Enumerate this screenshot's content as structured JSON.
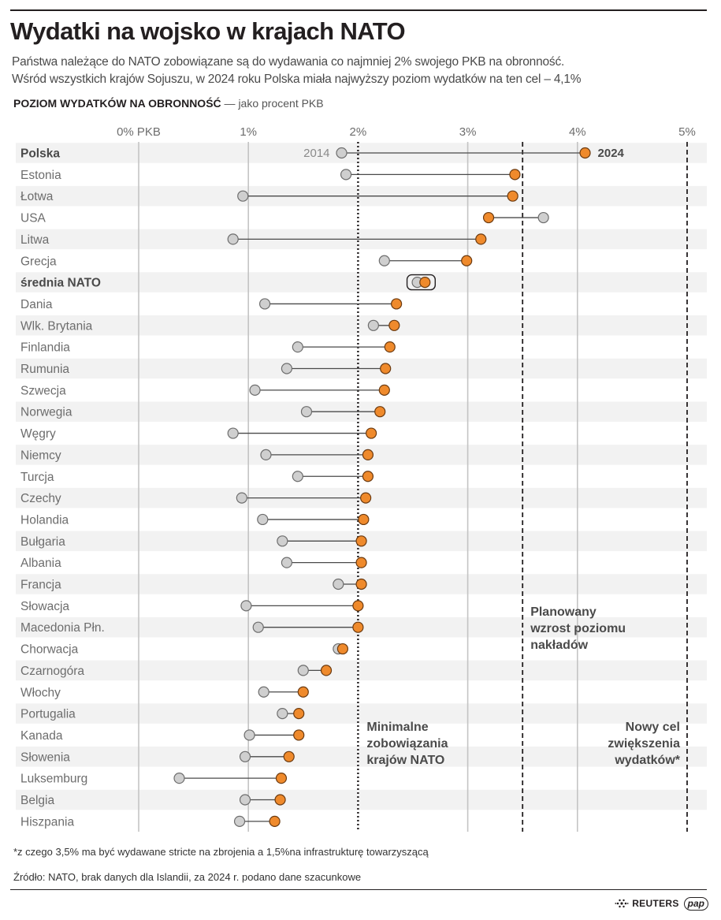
{
  "header": {
    "title": "Wydatki na wojsko w krajach NATO",
    "subtitle_line1": "Państwa należące do NATO zobowiązane są do wydawania co najmniej 2% swojego PKB na obronność.",
    "subtitle_line2": "Wśród wszystkich krajów Sojuszu, w 2024 roku Polska miała najwyższy poziom wydatków na ten cel – 4,1%",
    "axis_heading_bold": "POZIOM WYDATKÓW NA OBRONNOŚĆ",
    "axis_heading_dash": "—",
    "axis_heading_rest": "jako procent PKB"
  },
  "colors": {
    "orange": "#ef8a2c",
    "gray_dot": "#cfcfcf",
    "stripe": "#f2f2f2",
    "text_gray": "#6d6d6d",
    "dark": "#231f20"
  },
  "chart_data": {
    "type": "dumbbell",
    "series": [
      {
        "name": "2014"
      },
      {
        "name": "2024"
      }
    ],
    "xlim": [
      0,
      5
    ],
    "ticks": [
      {
        "value": 0,
        "label": "0% PKB"
      },
      {
        "value": 1,
        "label": "1%"
      },
      {
        "value": 2,
        "label": "2%"
      },
      {
        "value": 3,
        "label": "3%"
      },
      {
        "value": 4,
        "label": "4%"
      },
      {
        "value": 5,
        "label": "5%"
      }
    ],
    "reference_lines": [
      {
        "value": 2,
        "style": "dotted",
        "label_lines": [
          "Minimalne",
          "zobowiązania",
          "krajów NATO"
        ]
      },
      {
        "value": 3.5,
        "style": "dashed",
        "label_lines": [
          "Planowany",
          "wzrost poziomu",
          "nakładów"
        ]
      },
      {
        "value": 5,
        "style": "dashed",
        "label_lines": [
          "Nowy cel",
          "zwiększenia",
          "wydatków*"
        ]
      }
    ],
    "rows": [
      {
        "country": "Polska",
        "v2014": 1.85,
        "v2024": 4.07,
        "bold": true,
        "label_2014": "2014",
        "label_2024": "2024"
      },
      {
        "country": "Estonia",
        "v2014": 1.89,
        "v2024": 3.43
      },
      {
        "country": "Łotwa",
        "v2014": 0.95,
        "v2024": 3.41
      },
      {
        "country": "USA",
        "v2014": 3.69,
        "v2024": 3.19
      },
      {
        "country": "Litwa",
        "v2014": 0.86,
        "v2024": 3.12
      },
      {
        "country": "Grecja",
        "v2014": 2.24,
        "v2024": 2.99
      },
      {
        "country": "średnia NATO",
        "v2014": 2.54,
        "v2024": 2.61,
        "bold": true,
        "boxed": true
      },
      {
        "country": "Dania",
        "v2014": 1.15,
        "v2024": 2.35
      },
      {
        "country": "Wlk. Brytania",
        "v2014": 2.14,
        "v2024": 2.33
      },
      {
        "country": "Finlandia",
        "v2014": 1.45,
        "v2024": 2.29
      },
      {
        "country": "Rumunia",
        "v2014": 1.35,
        "v2024": 2.25
      },
      {
        "country": "Szwecja",
        "v2014": 1.06,
        "v2024": 2.24
      },
      {
        "country": "Norwegia",
        "v2014": 1.53,
        "v2024": 2.2
      },
      {
        "country": "Węgry",
        "v2014": 0.86,
        "v2024": 2.12
      },
      {
        "country": "Niemcy",
        "v2014": 1.16,
        "v2024": 2.09
      },
      {
        "country": "Turcja",
        "v2014": 1.45,
        "v2024": 2.09
      },
      {
        "country": "Czechy",
        "v2014": 0.94,
        "v2024": 2.07
      },
      {
        "country": "Holandia",
        "v2014": 1.13,
        "v2024": 2.05
      },
      {
        "country": "Bułgaria",
        "v2014": 1.31,
        "v2024": 2.03
      },
      {
        "country": "Albania",
        "v2014": 1.35,
        "v2024": 2.03
      },
      {
        "country": "Francja",
        "v2014": 1.82,
        "v2024": 2.03
      },
      {
        "country": "Słowacja",
        "v2014": 0.98,
        "v2024": 2.0
      },
      {
        "country": "Macedonia Płn.",
        "v2014": 1.09,
        "v2024": 2.0
      },
      {
        "country": "Chorwacja",
        "v2014": 1.82,
        "v2024": 1.86
      },
      {
        "country": "Czarnogóra",
        "v2014": 1.5,
        "v2024": 1.71
      },
      {
        "country": "Włochy",
        "v2014": 1.14,
        "v2024": 1.5
      },
      {
        "country": "Portugalia",
        "v2014": 1.31,
        "v2024": 1.46
      },
      {
        "country": "Kanada",
        "v2014": 1.01,
        "v2024": 1.46
      },
      {
        "country": "Słowenia",
        "v2014": 0.97,
        "v2024": 1.37
      },
      {
        "country": "Luksemburg",
        "v2014": 0.37,
        "v2024": 1.3
      },
      {
        "country": "Belgia",
        "v2014": 0.97,
        "v2024": 1.29
      },
      {
        "country": "Hiszpania",
        "v2014": 0.92,
        "v2024": 1.24
      }
    ]
  },
  "footnote": "*z czego 3,5% ma być wydawane stricte na zbrojenia a 1,5%na infrastrukturę towarzyszącą",
  "source": "Źródło: NATO, brak danych dla Islandii, za 2024 r. podano dane szacunkowe",
  "logos": {
    "reuters": "REUTERS",
    "pap": "pap"
  }
}
